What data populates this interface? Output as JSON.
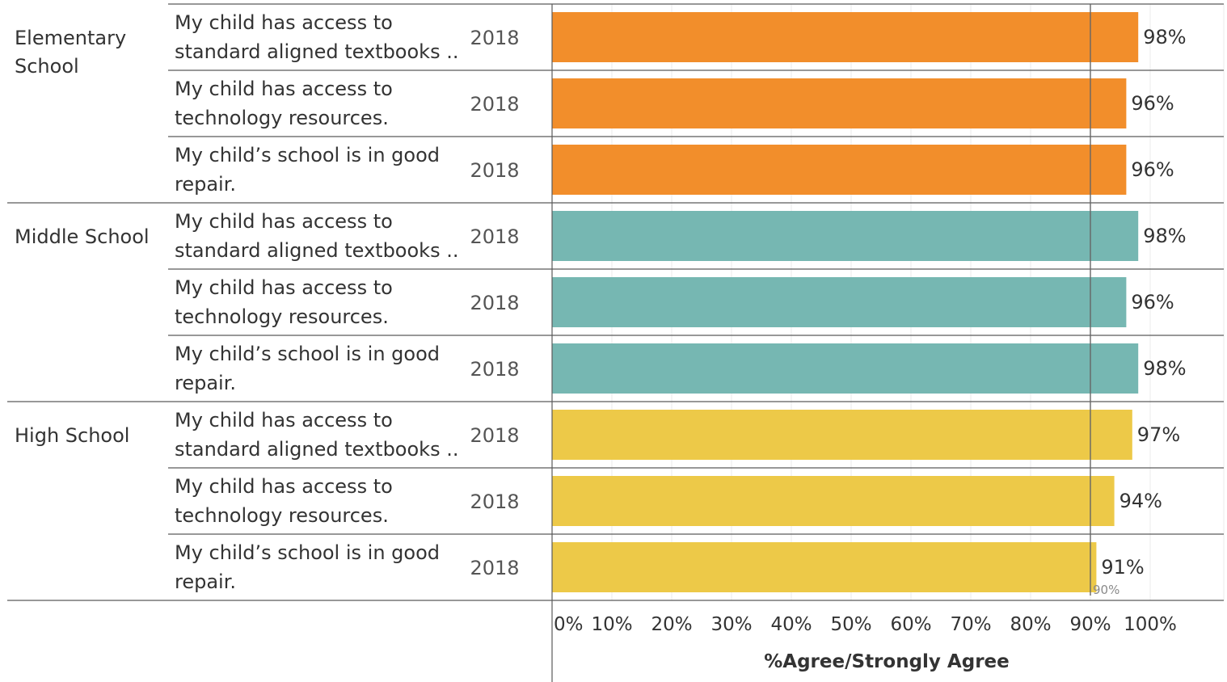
{
  "chart_data": {
    "type": "bar",
    "orientation": "horizontal",
    "xlabel": "%Agree/Strongly Agree",
    "xlim": [
      0,
      100
    ],
    "xticks": [
      0,
      10,
      20,
      30,
      40,
      50,
      60,
      70,
      80,
      90,
      100
    ],
    "xtick_labels": [
      "0%",
      "10%",
      "20%",
      "30%",
      "40%",
      "50%",
      "60%",
      "70%",
      "80%",
      "90%",
      "100%"
    ],
    "reference_line": {
      "value": 90,
      "label": "90%"
    },
    "groups": [
      {
        "name": "Elementary School",
        "name_lines": [
          "Elementary",
          "School"
        ],
        "color": "#f28e2b",
        "rows": [
          {
            "question_lines": [
              "My child has access to",
              "standard aligned textbooks .."
            ],
            "year": "2018",
            "value": 98,
            "label": "98%"
          },
          {
            "question_lines": [
              "My child has access to",
              "technology resources."
            ],
            "year": "2018",
            "value": 96,
            "label": "96%"
          },
          {
            "question_lines": [
              "My child’s school is in good",
              "repair."
            ],
            "year": "2018",
            "value": 96,
            "label": "96%"
          }
        ]
      },
      {
        "name": "Middle School",
        "name_lines": [
          "Middle School"
        ],
        "color": "#76b7b2",
        "rows": [
          {
            "question_lines": [
              "My child has access to",
              "standard aligned textbooks .."
            ],
            "year": "2018",
            "value": 98,
            "label": "98%"
          },
          {
            "question_lines": [
              "My child has access to",
              "technology resources."
            ],
            "year": "2018",
            "value": 96,
            "label": "96%"
          },
          {
            "question_lines": [
              "My child’s school is in good",
              "repair."
            ],
            "year": "2018",
            "value": 98,
            "label": "98%"
          }
        ]
      },
      {
        "name": "High School",
        "name_lines": [
          "High School"
        ],
        "color": "#edc948",
        "rows": [
          {
            "question_lines": [
              "My child has access to",
              "standard aligned textbooks .."
            ],
            "year": "2018",
            "value": 97,
            "label": "97%"
          },
          {
            "question_lines": [
              "My child has access to",
              "technology resources."
            ],
            "year": "2018",
            "value": 94,
            "label": "94%"
          },
          {
            "question_lines": [
              "My child’s school is in good",
              "repair."
            ],
            "year": "2018",
            "value": 91,
            "label": "91%"
          }
        ]
      }
    ]
  }
}
